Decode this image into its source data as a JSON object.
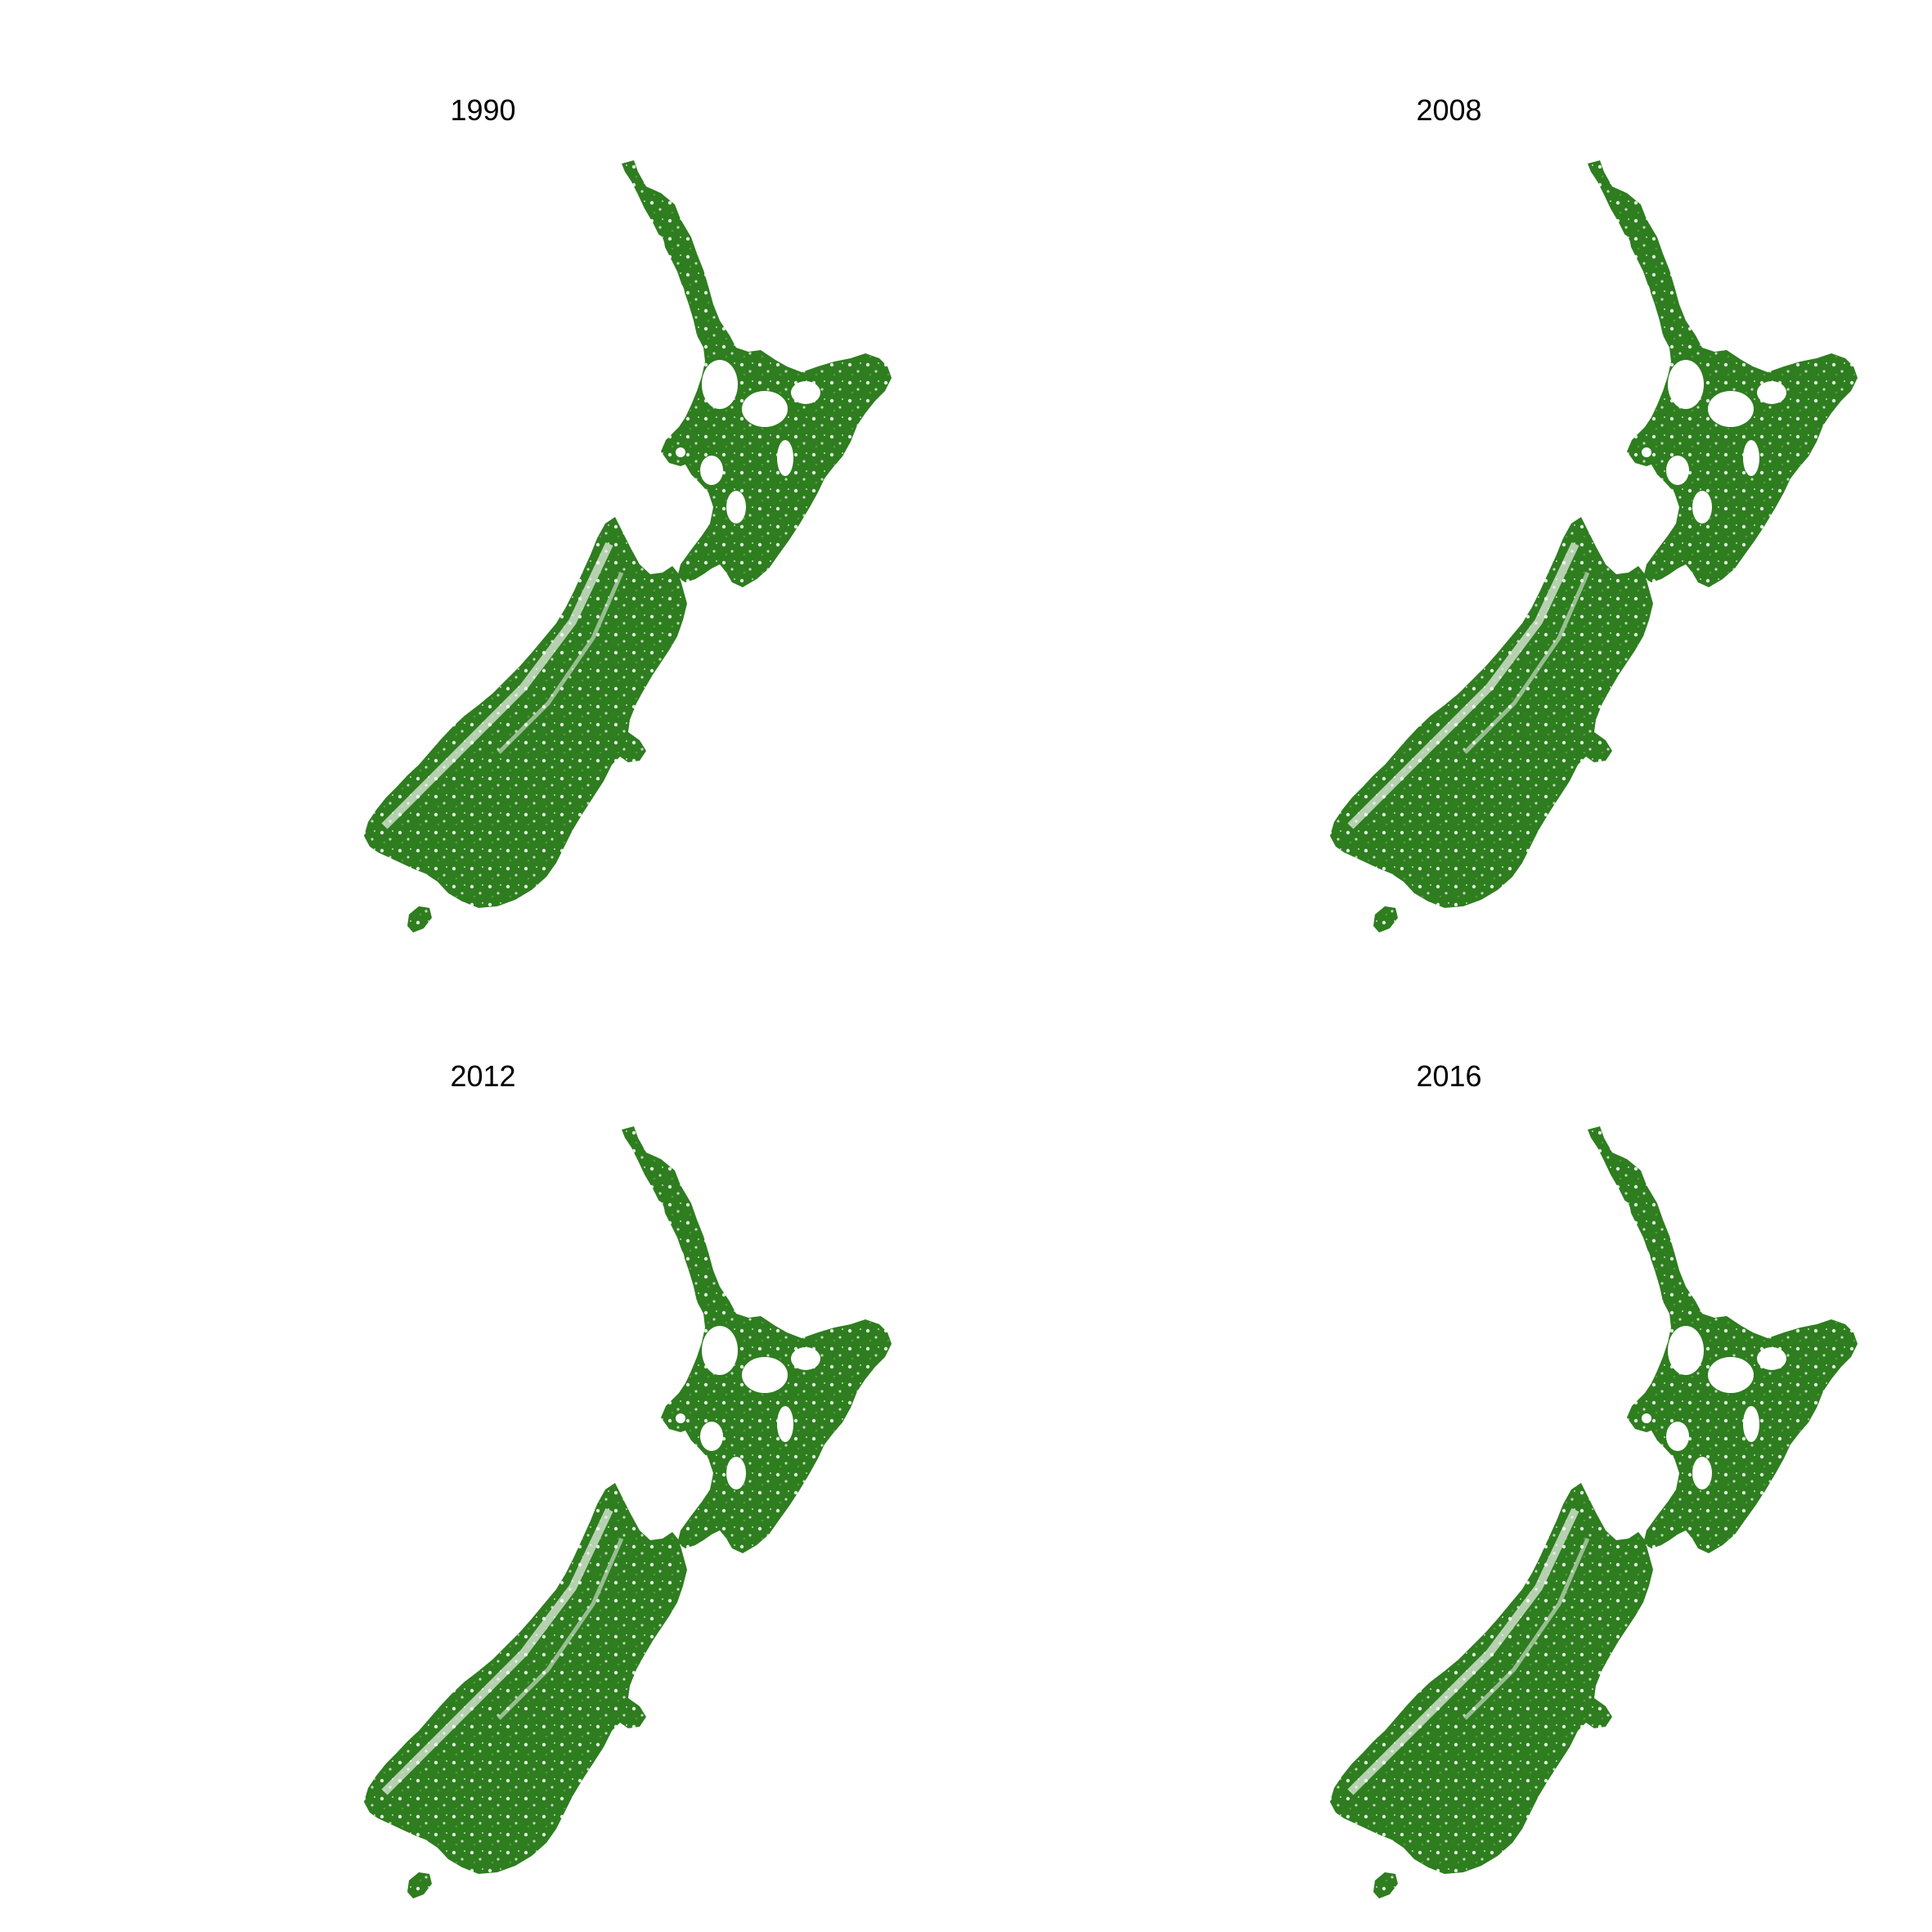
{
  "figure": {
    "panels": [
      {
        "title": "1990"
      },
      {
        "title": "2008"
      },
      {
        "title": "2012"
      },
      {
        "title": "2016"
      }
    ]
  },
  "colors": {
    "land_cover": "#2e7d1f",
    "background": "#ffffff"
  }
}
